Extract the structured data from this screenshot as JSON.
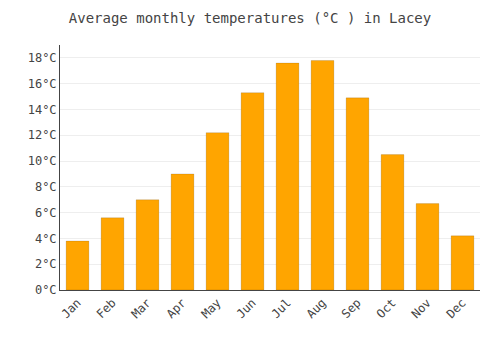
{
  "chart_data": {
    "type": "bar",
    "title": "Average monthly temperatures (°C ) in Lacey",
    "categories": [
      "Jan",
      "Feb",
      "Mar",
      "Apr",
      "May",
      "Jun",
      "Jul",
      "Aug",
      "Sep",
      "Oct",
      "Nov",
      "Dec"
    ],
    "values": [
      3.8,
      5.6,
      7.0,
      9.0,
      12.2,
      15.3,
      17.6,
      17.8,
      14.9,
      10.5,
      6.7,
      4.2
    ],
    "color": "#FFA500",
    "ylim": [
      0,
      19
    ],
    "yticks": [
      {
        "value": 0,
        "label": "0°C"
      },
      {
        "value": 2,
        "label": "2°C"
      },
      {
        "value": 4,
        "label": "4°C"
      },
      {
        "value": 6,
        "label": "6°C"
      },
      {
        "value": 8,
        "label": "8°C"
      },
      {
        "value": 10,
        "label": "10°C"
      },
      {
        "value": 12,
        "label": "12°C"
      },
      {
        "value": 14,
        "label": "14°C"
      },
      {
        "value": 16,
        "label": "16°C"
      },
      {
        "value": 18,
        "label": "18°C"
      }
    ],
    "grid": true
  }
}
